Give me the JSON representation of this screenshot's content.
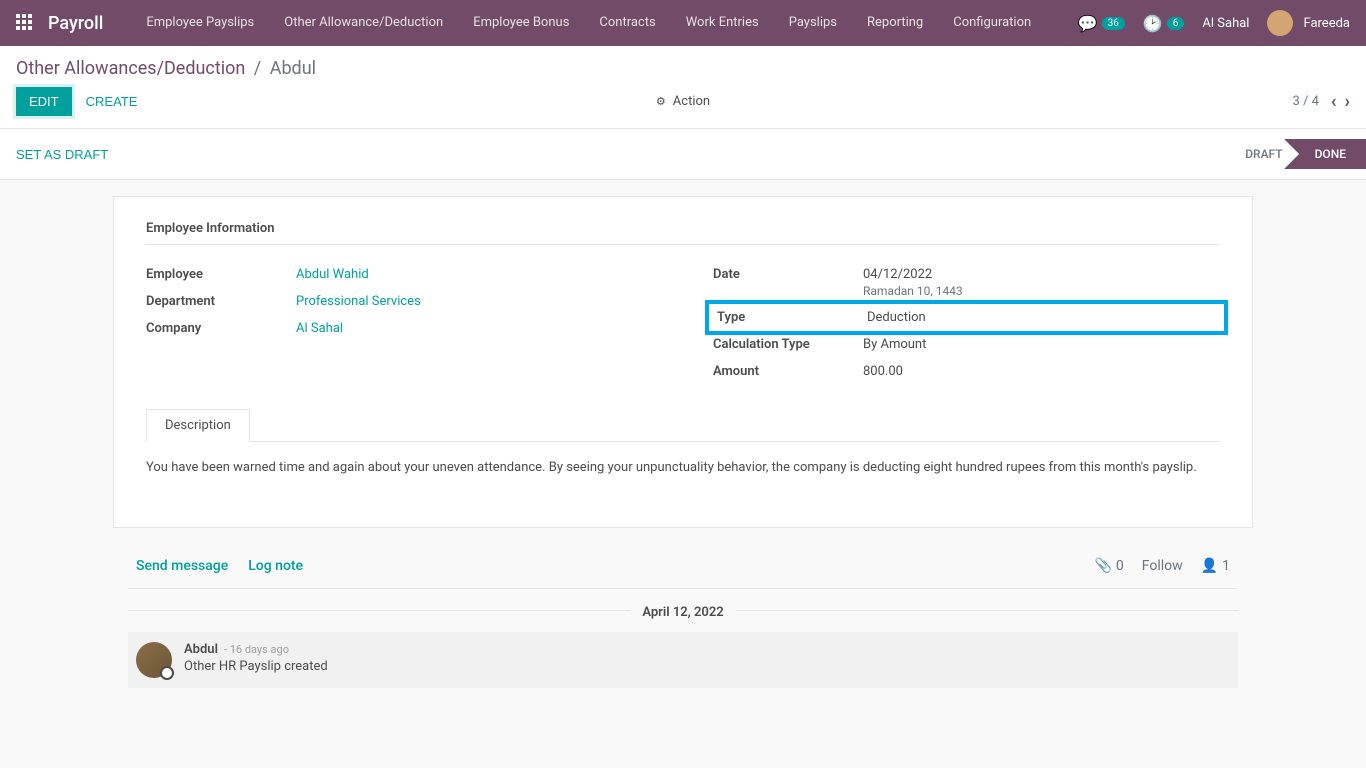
{
  "brand": "Payroll",
  "nav": {
    "items": [
      "Employee Payslips",
      "Other Allowance/Deduction",
      "Employee Bonus",
      "Contracts",
      "Work Entries",
      "Payslips",
      "Reporting",
      "Configuration"
    ]
  },
  "topright": {
    "chat_badge": "36",
    "activity_badge": "6",
    "company": "Al Sahal",
    "user": "Fareeda"
  },
  "breadcrumb": {
    "parent": "Other Allowances/Deduction",
    "current": "Abdul"
  },
  "buttons": {
    "edit": "EDIT",
    "create": "CREATE",
    "action": "Action",
    "set_draft": "SET AS DRAFT"
  },
  "pager": {
    "text": "3 / 4"
  },
  "status": {
    "draft": "DRAFT",
    "done": "DONE"
  },
  "form": {
    "section_title": "Employee Information",
    "left": {
      "employee_label": "Employee",
      "employee_value": "Abdul Wahid",
      "department_label": "Department",
      "department_value": "Professional Services",
      "company_label": "Company",
      "company_value": "Al Sahal"
    },
    "right": {
      "date_label": "Date",
      "date_value": "04/12/2022",
      "date_hijri": "Ramadan 10, 1443",
      "type_label": "Type",
      "type_value": "Deduction",
      "calc_label": "Calculation Type",
      "calc_value": "By Amount",
      "amount_label": "Amount",
      "amount_value": "800.00"
    }
  },
  "tabs": {
    "description_label": "Description",
    "description_text": "You have been warned time and again about your uneven attendance. By seeing your unpunctuality behavior, the company is deducting eight hundred rupees from this month's payslip."
  },
  "messages": {
    "send": "Send message",
    "log": "Log note",
    "attach_count": "0",
    "follow": "Follow",
    "follower_count": "1",
    "date_separator": "April 12, 2022",
    "item": {
      "author": "Abdul",
      "time": "- 16 days ago",
      "text": "Other HR Payslip created"
    }
  },
  "colors": {
    "primary": "#714B67",
    "teal": "#00a09d",
    "highlight": "#00a8e8"
  }
}
